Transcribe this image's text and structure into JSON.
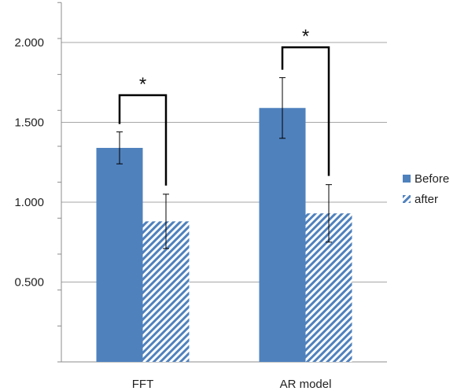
{
  "chart_data": {
    "type": "bar",
    "categories": [
      "FFT",
      "AR model"
    ],
    "series": [
      {
        "name": "Before",
        "values": [
          1.34,
          1.59
        ],
        "errors": [
          0.1,
          0.19
        ],
        "color": "#4f81bd",
        "pattern": "solid"
      },
      {
        "name": "after",
        "values": [
          0.88,
          0.93
        ],
        "errors": [
          0.17,
          0.18
        ],
        "color": "#4f81bd",
        "pattern": "diagonal-hatch"
      }
    ],
    "ylim": [
      0,
      2.25
    ],
    "yticks": [
      "0.500",
      "1.000",
      "1.500",
      "2.000"
    ],
    "ytick_values": [
      0.5,
      1.0,
      1.5,
      2.0
    ],
    "grid": true,
    "legend": "right",
    "annotations": [
      {
        "category": "FFT",
        "text": "*",
        "bracket_top": 1.67
      },
      {
        "category": "AR model",
        "text": "*",
        "bracket_top": 1.97
      }
    ]
  }
}
